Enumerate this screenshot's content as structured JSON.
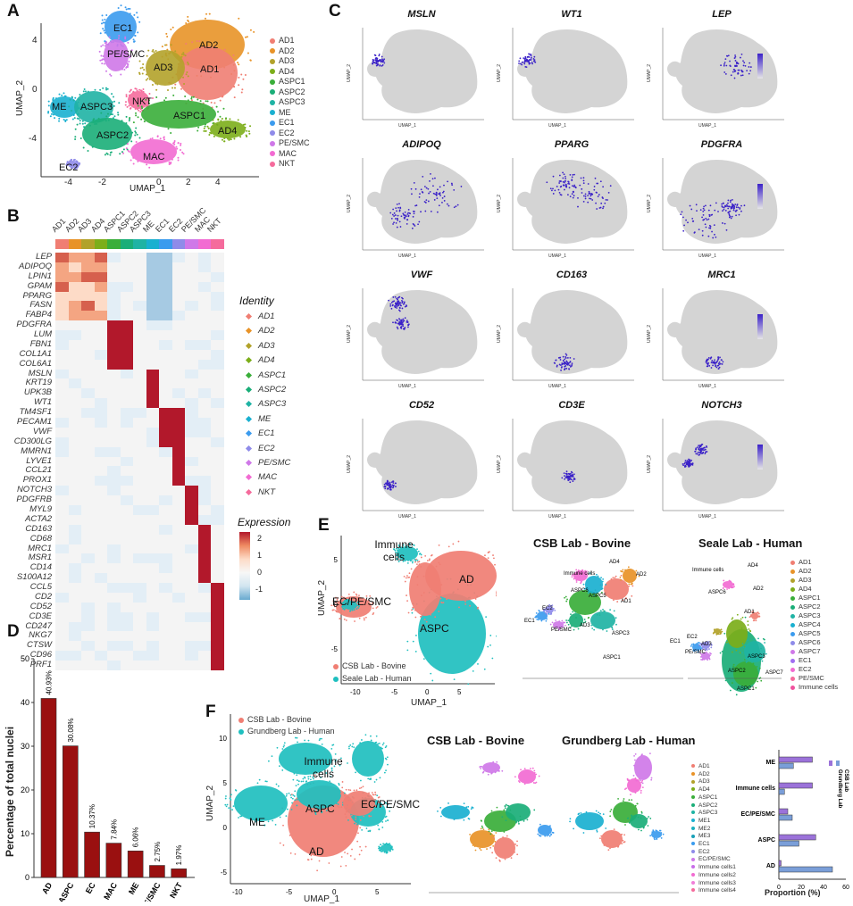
{
  "panels": {
    "a": "A",
    "b": "B",
    "c": "C",
    "d": "D",
    "e": "E",
    "f": "F"
  },
  "colors": {
    "AD1": "#f07e73",
    "AD2": "#e89328",
    "AD3": "#b2a22a",
    "AD4": "#7cae1a",
    "ASPC1": "#3aae3a",
    "ASPC2": "#1aae78",
    "ASPC3": "#1fb3a4",
    "ME": "#1ab0d0",
    "EC1": "#3b9bee",
    "EC2": "#8f8be9",
    "PE_SMC": "#cf78e8",
    "MAC": "#f26bd2",
    "NKT": "#f56b9c",
    "bar": "#9a1010",
    "bovine": "#f07e73",
    "human": "#1fbfbf"
  },
  "panelA": {
    "xlabel": "UMAP_1",
    "ylabel": "UMAP_2",
    "xticks": [
      "-4",
      "-2",
      "0",
      "2",
      "4"
    ],
    "yticks": [
      "4",
      "0",
      "-4"
    ],
    "cluster_labels": [
      "EC1",
      "PE/SMC",
      "AD2",
      "AD3",
      "AD1",
      "ME",
      "ASPC3",
      "NKT",
      "ASPC1",
      "AD4",
      "ASPC2",
      "MAC",
      "EC2"
    ],
    "legend": [
      "AD1",
      "AD2",
      "AD3",
      "AD4",
      "ASPC1",
      "ASPC2",
      "ASPC3",
      "ME",
      "EC1",
      "EC2",
      "PE/SMC",
      "MAC",
      "NKT"
    ]
  },
  "panelB": {
    "columns": [
      "AD1",
      "AD2",
      "AD3",
      "AD4",
      "ASPC1",
      "ASPC2",
      "ASPC3",
      "ME",
      "EC1",
      "EC2",
      "PE/SMC",
      "MAC",
      "NKT"
    ],
    "genes": [
      "LEP",
      "ADIPOQ",
      "LPIN1",
      "GPAM",
      "PPARG",
      "FASN",
      "FABP4",
      "PDGFRA",
      "LUM",
      "FBN1",
      "COL1A1",
      "COL6A1",
      "MSLN",
      "KRT19",
      "UPK3B",
      "WT1",
      "TM4SF1",
      "PECAM1",
      "VWF",
      "CD300LG",
      "MMRN1",
      "LYVE1",
      "CCL21",
      "PROX1",
      "NOTCH3",
      "PDGFRB",
      "MYL9",
      "ACTA2",
      "CD163",
      "CD68",
      "MRC1",
      "MSR1",
      "CD14",
      "S100A12",
      "CCL5",
      "CD2",
      "CD52",
      "CD3E",
      "CD247",
      "NKG7",
      "CTSW",
      "CD96",
      "PRF1"
    ],
    "identity_title": "Identity",
    "identity": [
      "AD1",
      "AD2",
      "AD3",
      "AD4",
      "ASPC1",
      "ASPC2",
      "ASPC3",
      "ME",
      "EC1",
      "EC2",
      "PE/SMC",
      "MAC",
      "NKT"
    ],
    "expression_title": "Expression",
    "expression_ticks": [
      "2",
      "1",
      "0",
      "-1"
    ]
  },
  "panelC": {
    "genes": [
      "MSLN",
      "WT1",
      "LEP",
      "ADIPOQ",
      "PPARG",
      "PDGFRA",
      "VWF",
      "CD163",
      "MRC1",
      "CD52",
      "CD3E",
      "NOTCH3"
    ],
    "xlabel": "UMAP_1",
    "ylabel": "UMAP_2"
  },
  "chart_data": {
    "type": "bar",
    "title": "",
    "categories": [
      "AD",
      "ASPC",
      "EC",
      "MAC",
      "ME",
      "PE/SMC",
      "NKT"
    ],
    "values": [
      40.93,
      30.08,
      10.37,
      7.84,
      6.06,
      2.75,
      1.97
    ],
    "value_labels": [
      "40.93%",
      "30.08%",
      "10.37%",
      "7.84%",
      "6.06%",
      "2.75%",
      "1.97%"
    ],
    "xlabel": "",
    "ylabel": "Percentage of total nuclei",
    "ylim": [
      0,
      50
    ],
    "yticks": [
      "0",
      "10",
      "20",
      "30",
      "40",
      "50"
    ]
  },
  "panelE": {
    "labels_left": [
      "Immune cells",
      "AD",
      "EC/PE/SMC",
      "ASPC"
    ],
    "legend_left": [
      "CSB Lab - Bovine",
      "Seale Lab - Human"
    ],
    "title_mid": "CSB Lab - Bovine",
    "title_right": "Seale Lab - Human",
    "xlabel": "UMAP_1",
    "ylabel": "UMAP_2",
    "xticks": [
      "-10",
      "-5",
      "0",
      "5"
    ],
    "yticks": [
      "5",
      "0",
      "-5"
    ],
    "legend_right": [
      "AD1",
      "AD2",
      "AD3",
      "AD4",
      "ASPC1",
      "ASPC2",
      "ASPC3",
      "ASPC4",
      "ASPC5",
      "ASPC6",
      "ASPC7",
      "EC1",
      "EC2",
      "PE/SMC",
      "Immune cells"
    ]
  },
  "panelF": {
    "labels_left": [
      "Immune cells",
      "ASPC",
      "EC/PE/SMC",
      "ME",
      "AD"
    ],
    "legend_left": [
      "CSB Lab - Bovine",
      "Grundberg Lab - Human"
    ],
    "title_mid": "CSB Lab - Bovine",
    "title_right": "Grundberg Lab - Human",
    "xlabel": "UMAP_1",
    "ylabel": "UMAP_2",
    "xticks": [
      "-10",
      "-5",
      "0",
      "5"
    ],
    "yticks": [
      "10",
      "5",
      "0",
      "-5"
    ],
    "legend_right": [
      "AD1",
      "AD2",
      "AD3",
      "AD4",
      "ASPC1",
      "ASPC2",
      "ASPC3",
      "ME1",
      "ME2",
      "ME3",
      "EC1",
      "EC2",
      "EC/PE/SMC",
      "Immune cells1",
      "Immune cells2",
      "Immune cells3",
      "Immune cells4"
    ],
    "proportion": {
      "categories": [
        "ME",
        "Immune cells",
        "EC/PE/SMC",
        "ASPC",
        "AD"
      ],
      "bovine": [
        30,
        30,
        8,
        33,
        2
      ],
      "human": [
        13,
        5,
        12,
        18,
        48
      ],
      "xlabel": "Proportion (%)",
      "xticks": [
        "0",
        "20",
        "40",
        "60"
      ],
      "legend": [
        "CSB Lab",
        "Grundberg Lab"
      ]
    }
  }
}
